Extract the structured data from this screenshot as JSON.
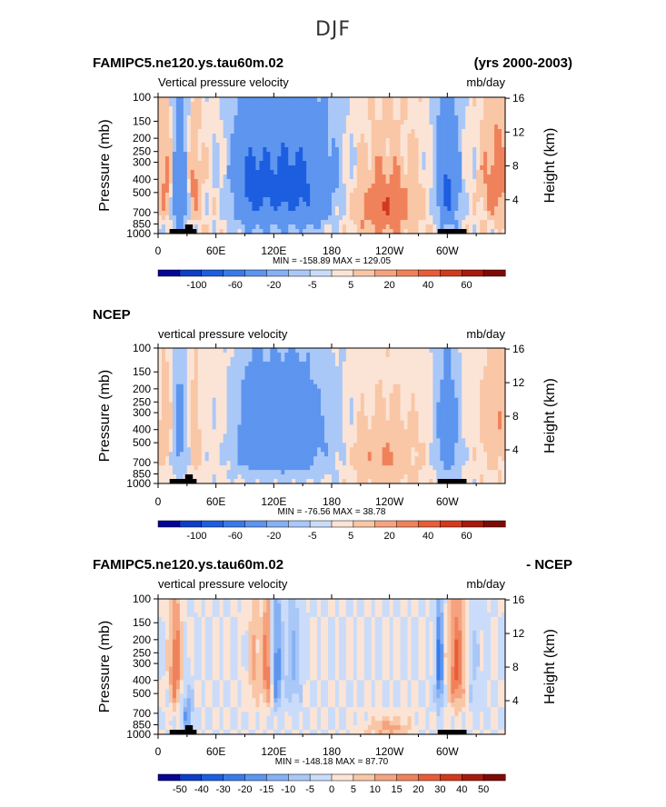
{
  "figure": {
    "title": "DJF"
  },
  "chart_data": [
    {
      "type": "heatmap",
      "top_left_title": "FAMIPC5.ne120.ys.tau60m.02",
      "top_right_title": "(yrs 2000-2003)",
      "subtitle_left": "Vertical pressure velocity",
      "subtitle_right": "mb/day",
      "ylabel": "Pressure (mb)",
      "ylabel_right": "Height (km)",
      "y_ticks": [
        "100",
        "150",
        "200",
        "250",
        "300",
        "400",
        "500",
        "700",
        "850",
        "1000"
      ],
      "y_tick_values": [
        100,
        150,
        200,
        250,
        300,
        400,
        500,
        700,
        850,
        1000
      ],
      "y_right_ticks": [
        "16",
        "12",
        "8",
        "4"
      ],
      "y_right_values": [
        16,
        12,
        8,
        4
      ],
      "x_ticks": [
        "0",
        "60E",
        "120E",
        "180",
        "120W",
        "60W"
      ],
      "x_tick_values": [
        0,
        60,
        120,
        180,
        240,
        300
      ],
      "xlim": [
        0,
        360
      ],
      "ylim": [
        1000,
        100
      ],
      "stats": "MIN = -158.89   MAX = 129.05",
      "colorbar_labels": [
        "-100",
        "-60",
        "-20",
        "-5",
        "5",
        "20",
        "40",
        "60"
      ],
      "colorbar_levels": [
        -100,
        -60,
        -20,
        -5,
        5,
        20,
        40,
        60
      ],
      "colorbar_colors": [
        "#050595",
        "#0d3ec8",
        "#1d5ee0",
        "#3a7ae8",
        "#5d95ef",
        "#86b1f3",
        "#aac8f7",
        "#cadcf9",
        "#fbe4d6",
        "#f9c6a6",
        "#f5a37f",
        "#f0825b",
        "#e85d38",
        "#d13a1c",
        "#a81a0f",
        "#7d0b08"
      ],
      "field_scale": 1.0
    },
    {
      "type": "heatmap",
      "top_left_title": "NCEP",
      "top_right_title": "",
      "subtitle_left": "vertical pressure velocity",
      "subtitle_right": "mb/day",
      "ylabel": "Pressure (mb)",
      "ylabel_right": "Height (km)",
      "y_ticks": [
        "100",
        "150",
        "200",
        "250",
        "300",
        "400",
        "500",
        "700",
        "850",
        "1000"
      ],
      "y_tick_values": [
        100,
        150,
        200,
        250,
        300,
        400,
        500,
        700,
        850,
        1000
      ],
      "y_right_ticks": [
        "16",
        "12",
        "8",
        "4"
      ],
      "y_right_values": [
        16,
        12,
        8,
        4
      ],
      "x_ticks": [
        "0",
        "60E",
        "120E",
        "180",
        "120W",
        "60W"
      ],
      "x_tick_values": [
        0,
        60,
        120,
        180,
        240,
        300
      ],
      "xlim": [
        0,
        360
      ],
      "ylim": [
        1000,
        100
      ],
      "stats": "MIN = -76.56   MAX =  38.78",
      "colorbar_labels": [
        "-100",
        "-60",
        "-20",
        "-5",
        "5",
        "20",
        "40",
        "60"
      ],
      "colorbar_levels": [
        -100,
        -60,
        -20,
        -5,
        5,
        20,
        40,
        60
      ],
      "colorbar_colors": [
        "#050595",
        "#0d3ec8",
        "#1d5ee0",
        "#3a7ae8",
        "#5d95ef",
        "#86b1f3",
        "#aac8f7",
        "#cadcf9",
        "#fbe4d6",
        "#f9c6a6",
        "#f5a37f",
        "#f0825b",
        "#e85d38",
        "#d13a1c",
        "#a81a0f",
        "#7d0b08"
      ],
      "field_scale": 0.55
    },
    {
      "type": "heatmap",
      "top_left_title": "FAMIPC5.ne120.ys.tau60m.02",
      "top_right_title": "- NCEP",
      "subtitle_left": "vertical pressure velocity",
      "subtitle_right": "mb/day",
      "ylabel": "Pressure (mb)",
      "ylabel_right": "Height (km)",
      "y_ticks": [
        "100",
        "150",
        "200",
        "250",
        "300",
        "400",
        "500",
        "700",
        "850",
        "1000"
      ],
      "y_tick_values": [
        100,
        150,
        200,
        250,
        300,
        400,
        500,
        700,
        850,
        1000
      ],
      "y_right_ticks": [
        "16",
        "12",
        "8",
        "4"
      ],
      "y_right_values": [
        16,
        12,
        8,
        4
      ],
      "x_ticks": [
        "0",
        "60E",
        "120E",
        "180",
        "120W",
        "60W"
      ],
      "x_tick_values": [
        0,
        60,
        120,
        180,
        240,
        300
      ],
      "xlim": [
        0,
        360
      ],
      "ylim": [
        1000,
        100
      ],
      "stats": "MIN = -148.18   MAX =  87.70",
      "colorbar_labels": [
        "-50",
        "-40",
        "-30",
        "-20",
        "-15",
        "-10",
        "-5",
        "0",
        "5",
        "10",
        "15",
        "20",
        "30",
        "40",
        "50"
      ],
      "colorbar_levels": [
        -50,
        -40,
        -30,
        -20,
        -15,
        -10,
        -5,
        0,
        5,
        10,
        15,
        20,
        30,
        40,
        50
      ],
      "colorbar_colors": [
        "#050595",
        "#0d3ec8",
        "#1d5ee0",
        "#3a7ae8",
        "#5d95ef",
        "#86b1f3",
        "#aac8f7",
        "#cadcf9",
        "#fbe4d6",
        "#f9c6a6",
        "#f5a37f",
        "#f0825b",
        "#e85d38",
        "#d13a1c",
        "#a81a0f",
        "#7d0b08"
      ],
      "field_scale": 0.5
    }
  ]
}
